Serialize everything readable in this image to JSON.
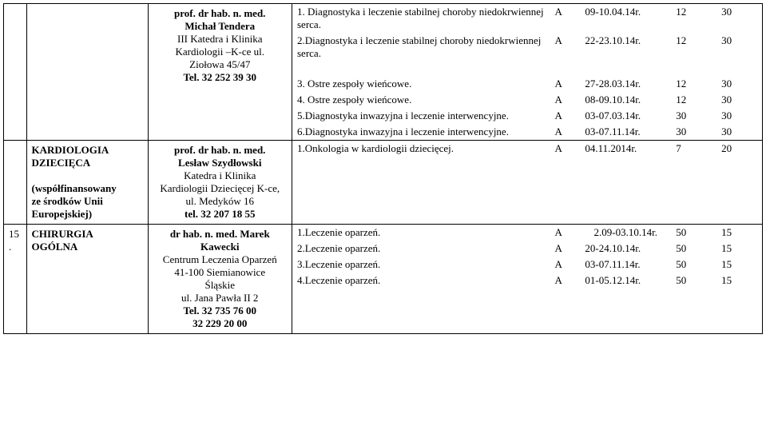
{
  "rows": [
    {
      "num": "",
      "topic": "",
      "person_lines": [
        {
          "text": "prof. dr hab. n. med.",
          "bold": true
        },
        {
          "text": "Michał Tendera",
          "bold": true
        },
        {
          "text": "III Katedra i Klinika",
          "bold": false
        },
        {
          "text": "Kardiologii –K-ce ul.",
          "bold": false
        },
        {
          "text": "Ziołowa 45/47",
          "bold": false
        },
        {
          "text": "Tel. 32 252 39 30",
          "bold": true
        }
      ],
      "items": [
        {
          "desc": "1. Diagnostyka i leczenie stabilnej choroby niedokrwiennej serca.",
          "a": "A",
          "date": "09-10.04.14r.",
          "n1": "12",
          "n2": "30"
        },
        {
          "desc": "2.Diagnostyka i leczenie stabilnej choroby niedokrwiennej serca.",
          "a": "A",
          "date": "22-23.10.14r.",
          "n1": "12",
          "n2": "30"
        },
        {
          "desc": "",
          "a": "",
          "date": "",
          "n1": "",
          "n2": ""
        },
        {
          "desc": "3. Ostre zespoły wieńcowe.",
          "a": "A",
          "date": "27-28.03.14r.",
          "n1": "12",
          "n2": "30"
        },
        {
          "desc": "4. Ostre zespoły wieńcowe.",
          "a": "A",
          "date": "08-09.10.14r.",
          "n1": "12",
          "n2": "30"
        },
        {
          "desc": "5.Diagnostyka inwazyjna i leczenie interwencyjne.",
          "a": "A",
          "date": "03-07.03.14r.",
          "n1": "30",
          "n2": "30"
        },
        {
          "desc": "6.Diagnostyka inwazyjna i leczenie interwencyjne.",
          "a": "A",
          "date": "03-07.11.14r.",
          "n1": "30",
          "n2": "30"
        }
      ]
    },
    {
      "num": "",
      "topic_lines": [
        {
          "text": "KARDIOLOGIA",
          "bold": true
        },
        {
          "text": "DZIECIĘCA",
          "bold": true
        },
        {
          "text": "",
          "bold": false
        },
        {
          "text": "(współfinansowany",
          "bold": true
        },
        {
          "text": "ze środków Unii",
          "bold": true
        },
        {
          "text": "Europejskiej)",
          "bold": true
        }
      ],
      "person_lines": [
        {
          "text": "prof. dr hab. n. med.",
          "bold": true
        },
        {
          "text": "Lesław Szydłowski",
          "bold": true
        },
        {
          "text": "Katedra i Klinika",
          "bold": false
        },
        {
          "text": "Kardiologii Dziecięcej K-ce,",
          "bold": false
        },
        {
          "text": "ul. Medyków 16",
          "bold": false
        },
        {
          "text": "tel. 32 207 18 55",
          "bold": true
        }
      ],
      "items": [
        {
          "desc": "1.Onkologia w kardiologii dziecięcej.",
          "a": "A",
          "date": "04.11.2014r.",
          "n1": "7",
          "n2": "20"
        }
      ]
    },
    {
      "num": "15.",
      "topic_lines": [
        {
          "text": "CHIRURGIA",
          "bold": true
        },
        {
          "text": "OGÓLNA",
          "bold": true
        }
      ],
      "person_lines": [
        {
          "text": "dr hab. n. med. Marek",
          "bold": true
        },
        {
          "text": "Kawecki",
          "bold": true
        },
        {
          "text": "Centrum Leczenia Oparzeń",
          "bold": false
        },
        {
          "text": "41-100 Siemianowice",
          "bold": false
        },
        {
          "text": "Śląskie",
          "bold": false
        },
        {
          "text": "ul. Jana Pawła II 2",
          "bold": false
        },
        {
          "text": "Tel. 32 735 76 00",
          "bold": true
        },
        {
          "text": "32 229 20 00",
          "bold": true
        }
      ],
      "items": [
        {
          "desc": "1.Leczenie oparzeń.",
          "a": "A",
          "date": "2.09-03.10.14r.",
          "date_center": true,
          "n1": "50",
          "n2": "15"
        },
        {
          "desc": "2.Leczenie oparzeń.",
          "a": "A",
          "date": "20-24.10.14r.",
          "n1": "50",
          "n2": "15"
        },
        {
          "desc": "3.Leczenie oparzeń.",
          "a": "A",
          "date": "03-07.11.14r.",
          "n1": "50",
          "n2": "15"
        },
        {
          "desc": "4.Leczenie oparzeń.",
          "a": "A",
          "date": "01-05.12.14r.",
          "n1": "50",
          "n2": "15"
        }
      ]
    }
  ]
}
